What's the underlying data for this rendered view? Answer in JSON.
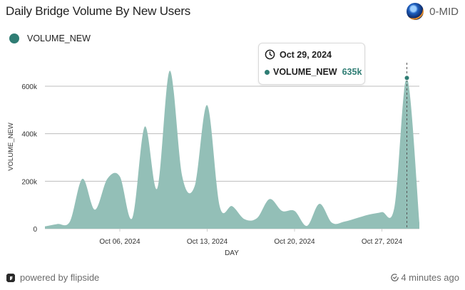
{
  "header": {
    "title": "Daily Bridge Volume By New Users",
    "author": "0-MID"
  },
  "legend": {
    "label": "VOLUME_NEW"
  },
  "tooltip": {
    "date": "Oct 29, 2024",
    "series": "VOLUME_NEW",
    "value": "635k"
  },
  "footer": {
    "powered": "powered by flipside",
    "updated": "4 minutes ago"
  },
  "colors": {
    "series": "#2f7d74",
    "area": "#93bfb7",
    "grid": "#bdbdbd"
  },
  "chart_data": {
    "type": "area",
    "x_start": "2024-09-30",
    "x_end": "2024-10-30",
    "xlabel": "DAY",
    "ylabel": "VOLUME_NEW",
    "ylim": [
      0,
      600000
    ],
    "yticks": [
      0,
      200000,
      400000,
      600000
    ],
    "ytick_labels": [
      "0",
      "200k",
      "400k",
      "600k"
    ],
    "xticks": [
      "2024-10-06",
      "2024-10-13",
      "2024-10-20",
      "2024-10-27"
    ],
    "xtick_labels": [
      "Oct 06, 2024",
      "Oct 13, 2024",
      "Oct 20, 2024",
      "Oct 27, 2024"
    ],
    "grid": true,
    "legend_position": "top-left",
    "series": [
      {
        "name": "VOLUME_NEW",
        "points": [
          [
            "2024-09-30",
            10000
          ],
          [
            "2024-10-01",
            20000
          ],
          [
            "2024-10-02",
            30000
          ],
          [
            "2024-10-03",
            210000
          ],
          [
            "2024-10-04",
            80000
          ],
          [
            "2024-10-05",
            210000
          ],
          [
            "2024-10-06",
            220000
          ],
          [
            "2024-10-07",
            45000
          ],
          [
            "2024-10-08",
            430000
          ],
          [
            "2024-10-09",
            170000
          ],
          [
            "2024-10-10",
            665000
          ],
          [
            "2024-10-11",
            220000
          ],
          [
            "2024-10-12",
            180000
          ],
          [
            "2024-10-13",
            520000
          ],
          [
            "2024-10-14",
            95000
          ],
          [
            "2024-10-15",
            95000
          ],
          [
            "2024-10-16",
            40000
          ],
          [
            "2024-10-17",
            45000
          ],
          [
            "2024-10-18",
            125000
          ],
          [
            "2024-10-19",
            75000
          ],
          [
            "2024-10-20",
            75000
          ],
          [
            "2024-10-21",
            12000
          ],
          [
            "2024-10-22",
            105000
          ],
          [
            "2024-10-23",
            25000
          ],
          [
            "2024-10-24",
            30000
          ],
          [
            "2024-10-25",
            45000
          ],
          [
            "2024-10-26",
            60000
          ],
          [
            "2024-10-27",
            70000
          ],
          [
            "2024-10-28",
            90000
          ],
          [
            "2024-10-29",
            635000
          ],
          [
            "2024-10-30",
            25000
          ]
        ]
      }
    ],
    "highlight": {
      "x": "2024-10-29",
      "y": 635000
    }
  }
}
